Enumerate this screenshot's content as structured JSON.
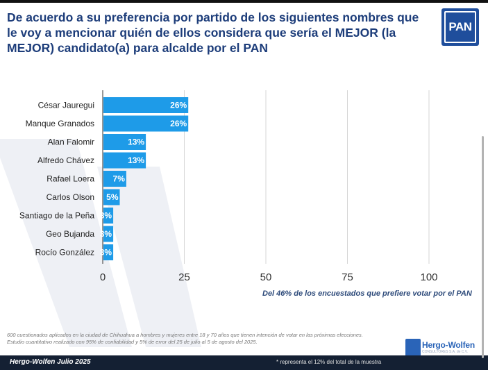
{
  "title": "De acuerdo a su preferencia por partido de los siguientes nombres que le voy a mencionar quién de ellos considera que sería el MEJOR (la MEJOR) candidato(a) para alcalde por el PAN",
  "logo_text": "PAN",
  "chart_data": {
    "type": "bar",
    "orientation": "horizontal",
    "categories": [
      "César Jauregui",
      "Manque Granados",
      "Alan Falomir",
      "Alfredo Chávez",
      "Rafael Loera",
      "Carlos Olson",
      "Santiago de la Peña",
      "Geo Bujanda",
      "Rocío González"
    ],
    "values": [
      26,
      26,
      13,
      13,
      7,
      5,
      3,
      3,
      3
    ],
    "labels": [
      "26%",
      "26%",
      "13%",
      "13%",
      "7%",
      "5%",
      "3%",
      "3%",
      "3%"
    ],
    "xlim": [
      0,
      100
    ],
    "xticks": [
      0,
      25,
      50,
      75,
      100
    ],
    "grid": true,
    "bar_color": "#1e9be8"
  },
  "axis_note": "Del 46% de los encuestados que prefiere votar por el PAN",
  "methodology": "600 cuestionados aplicados en la ciudad de Chihuahua a hombres y mujeres entre 18 y 70 años que tienen intención de votar en las próximas elecciones.",
  "methodology2": "Estudio cuantitativo realizado con 95% de confiabilidad y 5% de error del 25 de julio al 5 de agosto del 2025.",
  "footer": {
    "left": "Hergo-Wolfen Julio 2025",
    "note": "* representa el 12% del total de la muestra"
  },
  "brand": {
    "name": "Hergo-Wolfen",
    "sub": "CONSULTORES S.A. de C.V."
  },
  "colors": {
    "title": "#1d3d7a",
    "bar": "#1e9be8",
    "footer_bg": "#142033",
    "logo_bg": "#1f4e9c"
  }
}
